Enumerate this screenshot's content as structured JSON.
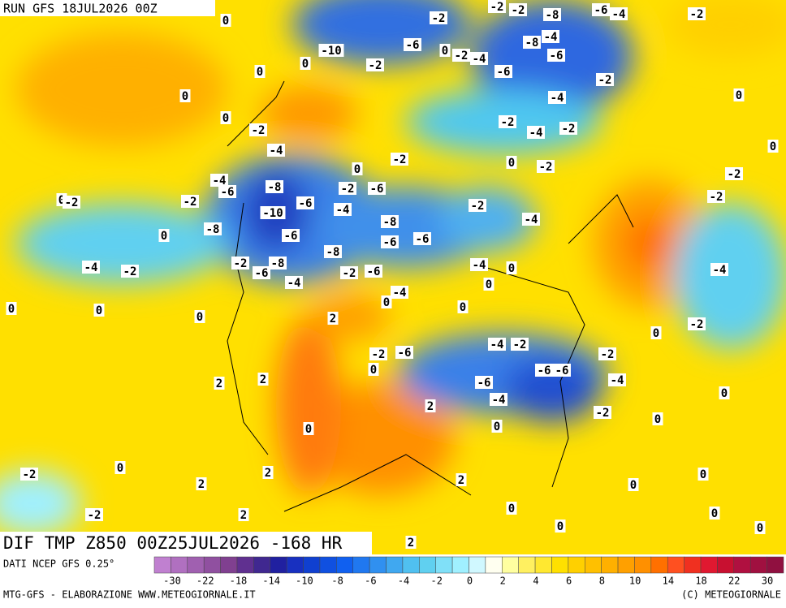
{
  "header": {
    "run": "RUN GFS 18JUL2026 00Z",
    "product": "DIF TMP Z850 00Z25JUL2026 -168 HR"
  },
  "footer": {
    "source": "DATI NCEP GFS 0.25°",
    "credit": "MTG-GFS - ELABORAZIONE WWW.METEOGIORNALE.IT",
    "copyright": "(C) METEOGIORNALE"
  },
  "colorbar": {
    "colors": [
      "#c080d0",
      "#b070c0",
      "#a060b0",
      "#9050a0",
      "#804090",
      "#603090",
      "#402890",
      "#2020a0",
      "#1830c0",
      "#1040d0",
      "#1050e0",
      "#1060f0",
      "#2078f0",
      "#3090f0",
      "#40a8f0",
      "#50c0f0",
      "#60d0f0",
      "#80e0f8",
      "#a0f0ff",
      "#d0f8ff",
      "#fffff0",
      "#ffffa0",
      "#fff060",
      "#ffe830",
      "#ffe000",
      "#ffd000",
      "#ffc000",
      "#ffb000",
      "#ffa000",
      "#ff9000",
      "#ff7000",
      "#ff5020",
      "#f03020",
      "#e01830",
      "#c81030",
      "#b01040",
      "#a01040",
      "#901040"
    ],
    "ticks": [
      -30,
      -22,
      -18,
      -14,
      -10,
      -8,
      -6,
      -4,
      -2,
      0,
      2,
      4,
      6,
      8,
      10,
      14,
      18,
      22,
      30
    ]
  },
  "map_labels": [
    "0",
    "-2",
    "-2",
    "-2",
    "-8",
    "-6",
    "-4",
    "-2",
    "-10",
    "-6",
    "0",
    "-2",
    "-4",
    "-8",
    "-4",
    "-6",
    "0",
    "-2",
    "0",
    "-6",
    "-2",
    "0",
    "-4",
    "0",
    "0",
    "-2",
    "-2",
    "-4",
    "-2",
    "-4",
    "-2",
    "0",
    "0",
    "-2",
    "-2",
    "0",
    "-4",
    "-8",
    "-2",
    "-6",
    "-6",
    "0",
    "-2",
    "-2",
    "-6",
    "-2",
    "-2",
    "-10",
    "-4",
    "-8",
    "-4",
    "-8",
    "0",
    "-6",
    "-6",
    "-6",
    "-8",
    "-2",
    "-8",
    "-4",
    "-2",
    "-6",
    "-2",
    "-6",
    "-4",
    "0",
    "-4",
    "-4",
    "0",
    "-4",
    "0",
    "0",
    "0",
    "0",
    "0",
    "2",
    "0",
    "-2",
    "-4",
    "-2",
    "-2",
    "-2",
    "-6",
    "0",
    "-6",
    "-6",
    "-4",
    "2",
    "2",
    "-6",
    "-4",
    "0",
    "2",
    "-2",
    "0",
    "0",
    "0",
    "0",
    "-2",
    "2",
    "2",
    "2",
    "0",
    "0",
    "-2",
    "2",
    "0",
    "0",
    "0",
    "0",
    "2"
  ]
}
